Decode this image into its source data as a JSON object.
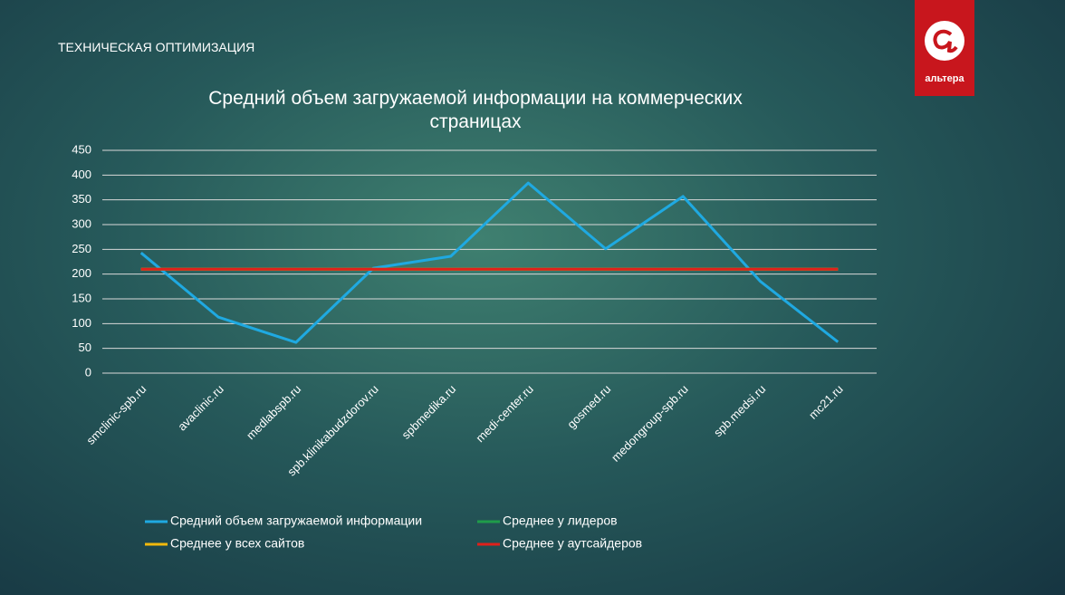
{
  "header": {
    "section": "ТЕХНИЧЕСКАЯ ОПТИМИЗАЦИЯ",
    "logo": "альтера"
  },
  "chart_data": {
    "type": "line",
    "title": "Средний объем загружаемой информации на коммерческих страницах",
    "categories": [
      "smclinic-spb.ru",
      "avaclinic.ru",
      "medlabspb.ru",
      "spb.klinikabudzdorov.ru",
      "spbmedika.ru",
      "medi-center.ru",
      "gosmed.ru",
      "medongroup-spb.ru",
      "spb.medsi.ru",
      "mc21.ru"
    ],
    "series": [
      {
        "name": "Средний объем загружаемой информации",
        "color": "#1fa9e1",
        "values": [
          243,
          113,
          62,
          212,
          236,
          384,
          251,
          357,
          185,
          63
        ]
      },
      {
        "name": "Среднее у лидеров",
        "color": "#1f9c4a",
        "values": [
          210,
          210,
          210,
          210,
          210,
          210,
          210,
          210,
          210,
          210
        ]
      },
      {
        "name": "Среднее у всех сайтов",
        "color": "#f2b90c",
        "values": [
          210,
          210,
          210,
          210,
          210,
          210,
          210,
          210,
          210,
          210
        ]
      },
      {
        "name": "Среднее у аутсайдеров",
        "color": "#e0201b",
        "values": [
          210,
          210,
          210,
          210,
          210,
          210,
          210,
          210,
          210,
          210
        ]
      }
    ],
    "ylim": [
      0,
      450
    ],
    "yticks": [
      0,
      50,
      100,
      150,
      200,
      250,
      300,
      350,
      400,
      450
    ],
    "grid": true,
    "legend": "bottom"
  }
}
